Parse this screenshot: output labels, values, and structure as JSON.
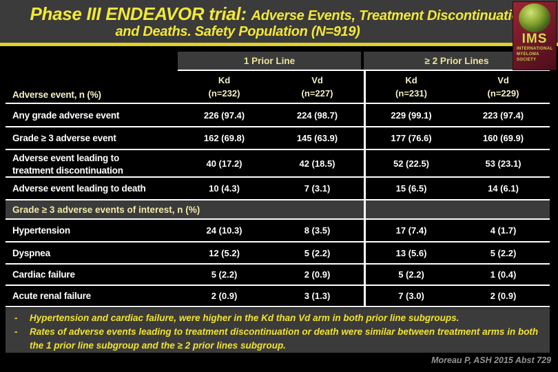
{
  "slide": {
    "title_part1": "Phase III ENDEAVOR trial: ",
    "title_part2": "Adverse Events, Treatment Discontinuation",
    "title_line2": "and Deaths. Safety Population (N=919)",
    "logo_abbr": "IMS",
    "logo_full": "INTERNATIONAL MYELOMA SOCIETY",
    "citation": "Moreau P, ASH 2015 Abst 729"
  },
  "table": {
    "group_headers": [
      "1 Prior Line",
      "≥ 2 Prior Lines"
    ],
    "row_label_header": "Adverse event, n (%)",
    "column_headers": [
      {
        "arm": "Kd",
        "n": "(n=232)"
      },
      {
        "arm": "Vd",
        "n": "(n=227)"
      },
      {
        "arm": "Kd",
        "n": "(n=231)"
      },
      {
        "arm": "Vd",
        "n": "(n=229)"
      }
    ],
    "rows": [
      {
        "label": "Any grade adverse event",
        "values": [
          "226 (97.4)",
          "224 (98.7)",
          "229 (99.1)",
          "223 (97.4)"
        ]
      },
      {
        "label": "Grade ≥ 3 adverse event",
        "values": [
          "162 (69.8)",
          "145 (63.9)",
          "177 (76.6)",
          "160 (69.9)"
        ]
      },
      {
        "label_line1": "Adverse event leading to",
        "label_line2": "treatment discontinuation",
        "values": [
          "40 (17.2)",
          "42 (18.5)",
          "52 (22.5)",
          "53 (23.1)"
        ]
      },
      {
        "label": "Adverse event leading to death",
        "values": [
          "10 (4.3)",
          "7 (3.1)",
          "15 (6.5)",
          "14 (6.1)"
        ]
      }
    ],
    "section2_header": "Grade ≥ 3 adverse events of interest, n (%)",
    "rows2": [
      {
        "label": "Hypertension",
        "values": [
          "24 (10.3)",
          "8 (3.5)",
          "17 (7.4)",
          "4 (1.7)"
        ]
      },
      {
        "label": "Dyspnea",
        "values": [
          "12 (5.2)",
          "5 (2.2)",
          "13 (5.6)",
          "5 (2.2)"
        ]
      },
      {
        "label": "Cardiac failure",
        "values": [
          "5 (2.2)",
          "2 (0.9)",
          "5 (2.2)",
          "1 (0.4)"
        ]
      },
      {
        "label": "Acute renal failure",
        "values": [
          "2 (0.9)",
          "3 (1.3)",
          "7 (3.0)",
          "2 (0.9)"
        ]
      }
    ]
  },
  "notes": {
    "bullet_char": "-",
    "bullets": [
      "Hypertension and cardiac failure, were higher in the Kd than Vd arm in both prior line subgroups.",
      "Rates of adverse events leading to treatment discontinuation or death were similar between treatment arms in both the 1 prior line subgroup and the ≥ 2 prior lines subgroup."
    ]
  },
  "colors": {
    "background": "#000000",
    "panel_gray": "#3b3b3b",
    "title_yellow": "#f2e838",
    "underline_yellow": "#ddd223",
    "pale_yellow_headers": "#f5f0c8",
    "note_yellow": "#f1e32e",
    "citation_gray": "#949494",
    "logo_red": "#7c1c2b",
    "logo_green_text": "#c9d64c"
  }
}
